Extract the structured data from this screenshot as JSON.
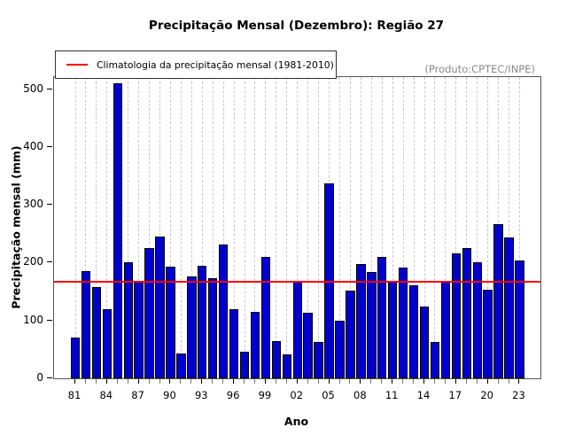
{
  "title": "Precipitação Mensal (Dezembro): Região 27",
  "legend": {
    "label": "Climatologia da precipitação mensal (1981-2010)"
  },
  "annotation": "(Produto:CPTEC/INPE)",
  "axes": {
    "xlabel": "Ano",
    "ylabel": "Precipitação mensal (mm)"
  },
  "chart_data": {
    "type": "bar",
    "title": "Precipitação Mensal (Dezembro): Região 27",
    "xlabel": "Ano",
    "ylabel": "Precipitação mensal (mm)",
    "categories": [
      "81",
      "82",
      "83",
      "84",
      "85",
      "86",
      "87",
      "88",
      "89",
      "90",
      "91",
      "92",
      "93",
      "94",
      "95",
      "96",
      "97",
      "98",
      "99",
      "00",
      "01",
      "02",
      "03",
      "04",
      "05",
      "06",
      "07",
      "08",
      "09",
      "10",
      "11",
      "12",
      "13",
      "14",
      "15",
      "16",
      "17",
      "18",
      "19",
      "20",
      "21",
      "22",
      "23"
    ],
    "values": [
      71,
      185,
      158,
      119,
      510,
      200,
      169,
      225,
      245,
      193,
      43,
      176,
      195,
      173,
      232,
      120,
      46,
      115,
      210,
      64,
      42,
      168,
      113,
      63,
      337,
      100,
      151,
      197,
      184,
      210,
      167,
      192,
      161,
      124,
      63,
      167,
      216,
      225,
      200,
      153,
      266,
      243,
      204
    ],
    "climatology_value": 167,
    "legend_label": "Climatologia da precipitação mensal (1981-2010)",
    "annotation": "(Produto:CPTEC/INPE)",
    "ylim": [
      0,
      521
    ],
    "yticks": [
      0,
      100,
      200,
      300,
      400,
      500
    ],
    "x_major_tick_labels": [
      "81",
      "84",
      "87",
      "90",
      "93",
      "96",
      "99",
      "02",
      "05",
      "08",
      "11",
      "14",
      "17",
      "20",
      "23"
    ],
    "grid": "vertical-dashed",
    "legend_position": "top-left",
    "bar_color": "#0000CC",
    "bar_border_color": "#000000",
    "climatology_color": "#FF0000",
    "annotation_color": "#8a8a8a"
  }
}
